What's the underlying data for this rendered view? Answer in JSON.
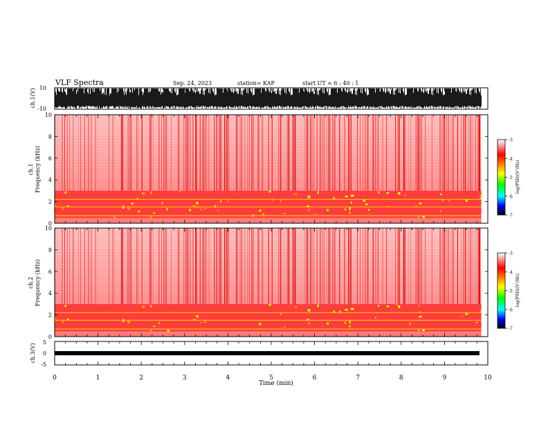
{
  "header": {
    "title": "VLF Spectra",
    "date": "Sep. 24, 2023",
    "station": "station= KAP",
    "start": "start  UT  =   6  : 40 : 1"
  },
  "chart_data": [
    {
      "type": "line",
      "name": "ch1-waveform",
      "ylabel": "ch.1(V)",
      "ylim": [
        -10,
        10
      ],
      "yticks": [
        "10",
        "-10"
      ],
      "xlim": [
        0,
        10
      ]
    },
    {
      "type": "heatmap",
      "name": "ch1-spectrogram",
      "ylabel_channel": "ch.1",
      "ylabel": "Frequency (kHz)",
      "ylim": [
        0,
        10
      ],
      "yticks": [
        "0",
        "2",
        "4",
        "6",
        "8",
        "10"
      ],
      "xlim": [
        0,
        10
      ],
      "data_end_min": 9.85,
      "strong_band_khz": [
        0.5,
        3.0
      ],
      "colorbar": {
        "label": "log(PSD)(V²/Hz)",
        "range": [
          -7,
          -3
        ],
        "ticks": [
          "-3",
          "-4",
          "-5",
          "-6",
          "-7"
        ]
      }
    },
    {
      "type": "heatmap",
      "name": "ch2-spectrogram",
      "ylabel_channel": "ch.2",
      "ylabel": "Frequency (kHz)",
      "ylim": [
        0,
        10
      ],
      "yticks": [
        "0",
        "2",
        "4",
        "6",
        "8",
        "10"
      ],
      "xlim": [
        0,
        10
      ],
      "data_end_min": 9.85,
      "strong_band_khz": [
        0.5,
        3.0
      ],
      "colorbar": {
        "label": "log(PSD)(V²/Hz)",
        "range": [
          -7,
          -3
        ],
        "ticks": [
          "-3",
          "-4",
          "-5",
          "-6",
          "-7"
        ]
      }
    },
    {
      "type": "line",
      "name": "ch3-waveform",
      "ylabel": "ch.3(V)",
      "ylim": [
        -5,
        5
      ],
      "yticks": [
        "5",
        "0",
        "-5"
      ],
      "xlim": [
        0,
        10
      ],
      "xlabel": "Time (min)",
      "xticks": [
        "0",
        "1",
        "2",
        "3",
        "4",
        "5",
        "6",
        "7",
        "8",
        "9",
        "10"
      ]
    }
  ],
  "colors": {
    "colormap": [
      "#ffffff",
      "#ff0000",
      "#ffff00",
      "#00ff00",
      "#00ffff",
      "#0000ff",
      "#000000"
    ]
  }
}
